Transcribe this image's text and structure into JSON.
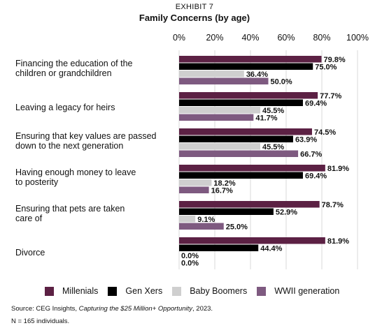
{
  "exhibit_label": "EXHIBIT 7",
  "colors": {
    "millenials": "#5c2144",
    "gen_xers": "#000000",
    "baby_boomers": "#cfcfcf",
    "wwii": "#7e5a80",
    "grid": "#d8d8d8"
  },
  "source": {
    "prefix": "Source: CEG Insights, ",
    "italic": "Capturing the $25 Million+ Opportunity",
    "suffix": ", 2023."
  },
  "note": "N = 165 individuals.",
  "chart_data": {
    "type": "bar",
    "orientation": "horizontal",
    "title": "Family Concerns (by age)",
    "xlim": [
      0,
      100
    ],
    "x_ticks": [
      "0%",
      "20%",
      "40%",
      "60%",
      "80%",
      "100%"
    ],
    "x_tick_values": [
      0,
      20,
      40,
      60,
      80,
      100
    ],
    "grid": true,
    "legend_position": "bottom",
    "categories": [
      [
        "Financing the education of the",
        "children or grandchildren"
      ],
      [
        "Leaving a legacy for heirs"
      ],
      [
        "Ensuring that key values are passed",
        "down to the next generation"
      ],
      [
        "Having enough money to leave",
        "to posterity"
      ],
      [
        "Ensuring that pets are taken",
        "care of"
      ],
      [
        "Divorce"
      ]
    ],
    "series": [
      {
        "name": "Millenials",
        "color_key": "millenials",
        "values": [
          79.8,
          77.7,
          74.5,
          81.9,
          78.7,
          81.9
        ]
      },
      {
        "name": "Gen Xers",
        "color_key": "gen_xers",
        "values": [
          75.0,
          69.4,
          63.9,
          69.4,
          52.9,
          44.4
        ]
      },
      {
        "name": "Baby Boomers",
        "color_key": "baby_boomers",
        "values": [
          36.4,
          45.5,
          45.5,
          18.2,
          9.1,
          0.0
        ]
      },
      {
        "name": "WWII generation",
        "color_key": "wwii",
        "values": [
          50.0,
          41.7,
          66.7,
          16.7,
          25.0,
          0.0
        ]
      }
    ]
  }
}
